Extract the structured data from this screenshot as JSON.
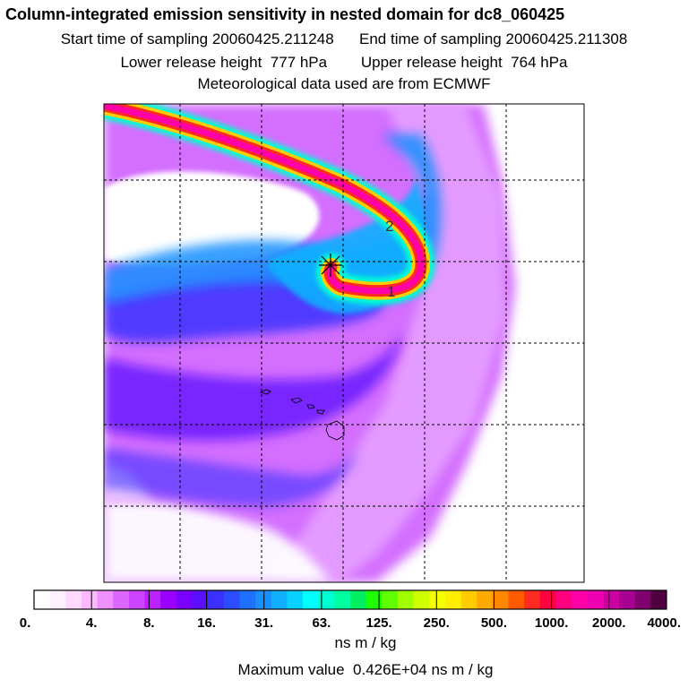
{
  "header": {
    "title": "Column-integrated emission sensitivity in nested domain for dc8_060425",
    "start_label": "Start time of sampling",
    "start_value": "20060425.211248",
    "end_label": "End time of sampling",
    "end_value": "20060425.211308",
    "lower_label": "Lower release height",
    "lower_value": "777 hPa",
    "upper_label": "Upper release height",
    "upper_value": "764 hPa",
    "met": "Meteorological data used are from ECMWF"
  },
  "chart_data": {
    "type": "heatmap",
    "title": "Column-integrated emission sensitivity in nested domain for dc8_060425",
    "grid": true,
    "trajectory_labels": [
      "1",
      "2"
    ],
    "colorbar": {
      "units": "ns m / kg",
      "tick_labels": [
        "0.",
        "4.",
        "8.",
        "16.",
        "31.",
        "63.",
        "125.",
        "250.",
        "500.",
        "1000.",
        "2000.",
        "4000."
      ],
      "colors": [
        "#ffffff",
        "#fff0ff",
        "#ffd8ff",
        "#ffb8ff",
        "#ee90ff",
        "#dd66ff",
        "#cc44ff",
        "#bb22ff",
        "#9a00ff",
        "#7a00ff",
        "#5a10ff",
        "#3a30ff",
        "#2b4dff",
        "#2070ff",
        "#1890ff",
        "#10b0ff",
        "#08d0ff",
        "#00ffff",
        "#00ffd0",
        "#00ffa0",
        "#00ee60",
        "#20ff00",
        "#60ff00",
        "#a0ff00",
        "#d0ff00",
        "#f4ff00",
        "#ffee00",
        "#ffcc00",
        "#ffaa00",
        "#ff8800",
        "#ff5a00",
        "#ff2a20",
        "#ff0040",
        "#ff0080",
        "#ff00a8",
        "#ee00b0",
        "#cc00a0",
        "#a80090",
        "#800070",
        "#500040"
      ]
    },
    "max_value_label": "Maximum value",
    "max_value": "0.426E+04 ns m / kg"
  }
}
